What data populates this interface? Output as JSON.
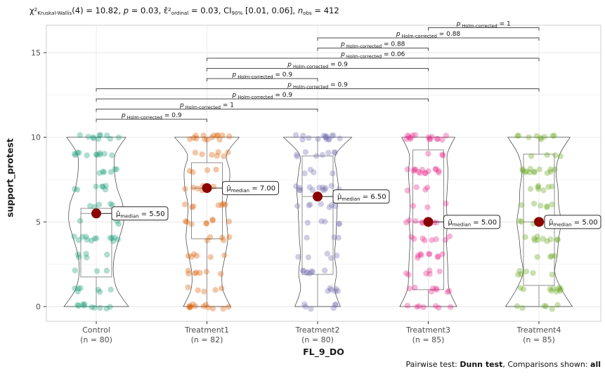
{
  "figure": {
    "title": {
      "chi": "χ",
      "chi_sup": "2",
      "chi_sub": "Kruskal-Wallis",
      "seg1": "(4) = 10.82, ",
      "p_sym": "p",
      "seg2": " = 0.03, ",
      "eps": "ε̂",
      "eps_sup": "2",
      "eps_sub": "ordinal",
      "seg3": " = 0.03, CI",
      "ci_sub": "90%",
      "seg4": " [0.01, 0.06], ",
      "n_sym": "n",
      "n_sub": "obs",
      "seg5": " = 412"
    },
    "ylabel": "support_protest",
    "xlabel": "FL_9_DO",
    "caption": {
      "prefix": "Pairwise test: ",
      "test": "Dunn test",
      "mid": ", Comparisons shown: ",
      "shown": "all"
    }
  },
  "chart_data": {
    "type": "violin-box-scatter",
    "ylabel": "support_protest",
    "xlabel": "FL_9_DO",
    "yticks": [
      0,
      5,
      10,
      15
    ],
    "yticks_minor": [
      2.5,
      7.5,
      12.5
    ],
    "value_range": [
      0,
      10
    ],
    "grid": true,
    "median_point_color": "#8B0000",
    "median_prefix": "μ̂",
    "median_sub": "median",
    "p_sym": "p",
    "p_sub": "Holm-corrected",
    "groups": [
      {
        "label": "Control",
        "n_label": "(n = 80)",
        "n": 80,
        "color": "#1B9E77",
        "median": 5.5,
        "median_text": "5.50",
        "q1": 1.75,
        "q3": 5.8,
        "whisker_low": 0,
        "whisker_high": 10,
        "violin": [
          [
            0,
            0.85
          ],
          [
            1,
            0.55
          ],
          [
            2,
            0.45
          ],
          [
            3,
            0.48
          ],
          [
            4,
            0.6
          ],
          [
            5,
            0.72
          ],
          [
            6,
            0.7
          ],
          [
            7,
            0.55
          ],
          [
            8,
            0.48
          ],
          [
            9,
            0.5
          ],
          [
            10,
            0.78
          ]
        ]
      },
      {
        "label": "Treatment1",
        "n_label": "(n = 82)",
        "n": 82,
        "color": "#D95F02",
        "median": 7,
        "median_text": "7.00",
        "q1": 4,
        "q3": 8.5,
        "whisker_low": 0,
        "whisker_high": 10,
        "violin": [
          [
            0,
            0.62
          ],
          [
            1,
            0.42
          ],
          [
            2,
            0.4
          ],
          [
            3,
            0.48
          ],
          [
            4,
            0.55
          ],
          [
            5,
            0.52
          ],
          [
            6,
            0.5
          ],
          [
            7,
            0.58
          ],
          [
            8,
            0.6
          ],
          [
            9,
            0.52
          ],
          [
            10,
            0.85
          ]
        ]
      },
      {
        "label": "Treatment2",
        "n_label": "(n = 80)",
        "n": 80,
        "color": "#7570B3",
        "median": 6.5,
        "median_text": "6.50",
        "q1": 1.9,
        "q3": 8.9,
        "whisker_low": 0,
        "whisker_high": 10,
        "violin": [
          [
            0,
            0.6
          ],
          [
            1,
            0.45
          ],
          [
            2,
            0.5
          ],
          [
            3,
            0.45
          ],
          [
            4,
            0.48
          ],
          [
            5,
            0.5
          ],
          [
            6,
            0.52
          ],
          [
            7,
            0.55
          ],
          [
            8,
            0.5
          ],
          [
            9,
            0.48
          ],
          [
            10,
            0.9
          ]
        ]
      },
      {
        "label": "Treatment3",
        "n_label": "(n = 85)",
        "n": 85,
        "color": "#E7298A",
        "median": 5,
        "median_text": "5.00",
        "q1": 1,
        "q3": 9.25,
        "whisker_low": 0,
        "whisker_high": 10,
        "violin": [
          [
            0,
            0.75
          ],
          [
            1,
            0.55
          ],
          [
            2,
            0.52
          ],
          [
            3,
            0.5
          ],
          [
            4,
            0.48
          ],
          [
            5,
            0.5
          ],
          [
            6,
            0.48
          ],
          [
            7,
            0.5
          ],
          [
            8,
            0.52
          ],
          [
            9,
            0.5
          ],
          [
            10,
            0.7
          ]
        ]
      },
      {
        "label": "Treatment4",
        "n_label": "(n = 85)",
        "n": 85,
        "color": "#66A61E",
        "median": 5,
        "median_text": "5.00",
        "q1": 1.25,
        "q3": 9,
        "whisker_low": 0,
        "whisker_high": 10,
        "violin": [
          [
            0,
            0.88
          ],
          [
            1,
            0.6
          ],
          [
            2,
            0.42
          ],
          [
            3,
            0.48
          ],
          [
            4,
            0.52
          ],
          [
            5,
            0.58
          ],
          [
            6,
            0.52
          ],
          [
            7,
            0.5
          ],
          [
            8,
            0.45
          ],
          [
            9,
            0.55
          ],
          [
            10,
            0.82
          ]
        ]
      }
    ],
    "comparisons": [
      {
        "group_a": "Control",
        "group_b": "Treatment1",
        "a": 0,
        "b": 1,
        "p": "0.9"
      },
      {
        "group_a": "Control",
        "group_b": "Treatment2",
        "a": 0,
        "b": 2,
        "p": "1"
      },
      {
        "group_a": "Control",
        "group_b": "Treatment3",
        "a": 0,
        "b": 3,
        "p": "0.9"
      },
      {
        "group_a": "Control",
        "group_b": "Treatment4",
        "a": 0,
        "b": 4,
        "p": "0.9"
      },
      {
        "group_a": "Treatment1",
        "group_b": "Treatment2",
        "a": 1,
        "b": 2,
        "p": "0.9"
      },
      {
        "group_a": "Treatment1",
        "group_b": "Treatment3",
        "a": 1,
        "b": 3,
        "p": "0.9"
      },
      {
        "group_a": "Treatment1",
        "group_b": "Treatment4",
        "a": 1,
        "b": 4,
        "p": "0.06"
      },
      {
        "group_a": "Treatment2",
        "group_b": "Treatment3",
        "a": 2,
        "b": 3,
        "p": "0.88"
      },
      {
        "group_a": "Treatment2",
        "group_b": "Treatment4",
        "a": 2,
        "b": 4,
        "p": "0.88"
      },
      {
        "group_a": "Treatment3",
        "group_b": "Treatment4",
        "a": 3,
        "b": 4,
        "p": "1"
      }
    ]
  }
}
